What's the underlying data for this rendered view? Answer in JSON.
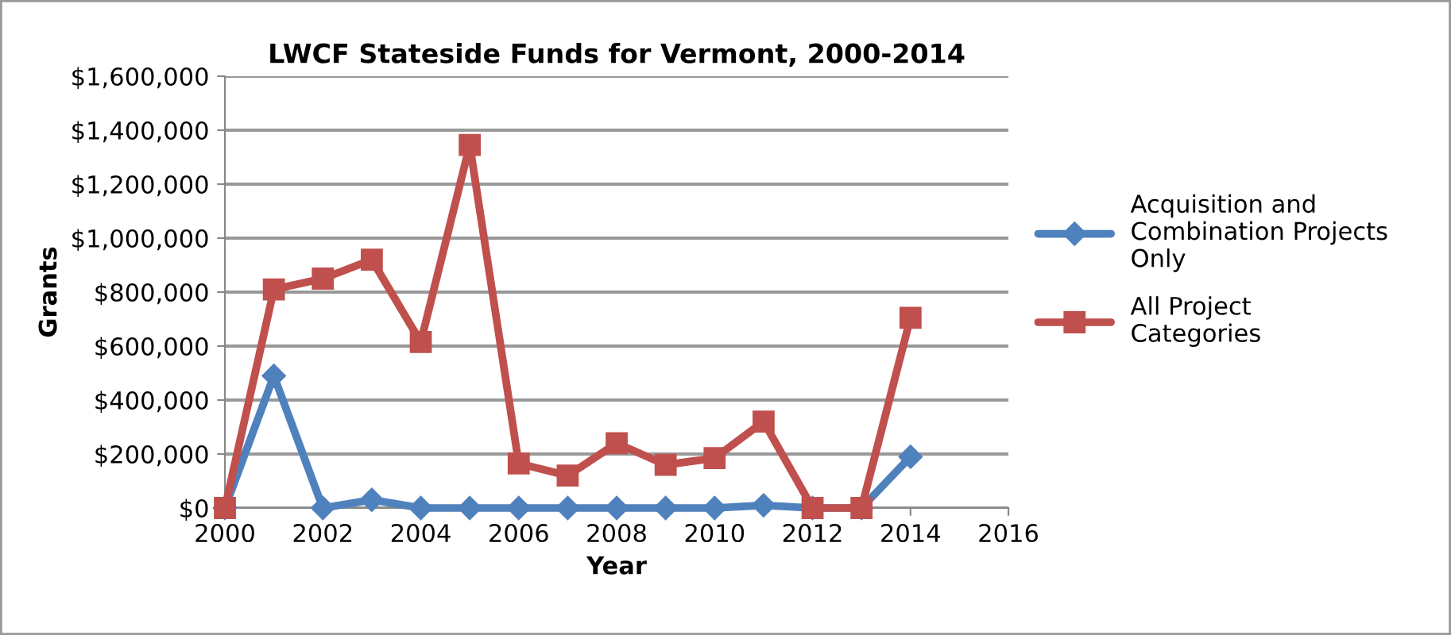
{
  "chart_data": {
    "type": "line",
    "title": "LWCF Stateside Funds for Vermont, 2000-2014",
    "xlabel": "Year",
    "ylabel": "Grants",
    "x": [
      2000,
      2001,
      2002,
      2003,
      2004,
      2005,
      2006,
      2007,
      2008,
      2009,
      2010,
      2011,
      2012,
      2013,
      2014
    ],
    "series": [
      {
        "name": "Acquisition and Combination Projects Only",
        "color": "#4f81bd",
        "marker": "diamond",
        "values": [
          0,
          490000,
          0,
          30000,
          0,
          0,
          0,
          0,
          0,
          0,
          0,
          10000,
          0,
          0,
          190000
        ]
      },
      {
        "name": "All Project Categories",
        "color": "#c0504d",
        "marker": "square",
        "values": [
          0,
          810000,
          850000,
          920000,
          615000,
          1345000,
          165000,
          120000,
          240000,
          160000,
          185000,
          320000,
          0,
          0,
          705000
        ]
      }
    ],
    "xlim": [
      2000,
      2016
    ],
    "xticks": [
      2000,
      2002,
      2004,
      2006,
      2008,
      2010,
      2012,
      2014,
      2016
    ],
    "ylim": [
      0,
      1600000
    ],
    "yticks": [
      {
        "value": 0,
        "label": "$0"
      },
      {
        "value": 200000,
        "label": "$200,000"
      },
      {
        "value": 400000,
        "label": "$400,000"
      },
      {
        "value": 600000,
        "label": "$600,000"
      },
      {
        "value": 800000,
        "label": "$800,000"
      },
      {
        "value": 1000000,
        "label": "$1,000,000"
      },
      {
        "value": 1200000,
        "label": "$1,200,000"
      },
      {
        "value": 1400000,
        "label": "$1,400,000"
      },
      {
        "value": 1600000,
        "label": "$1,600,000"
      }
    ],
    "grid": "y",
    "legend": "right",
    "line_style": "solid"
  }
}
